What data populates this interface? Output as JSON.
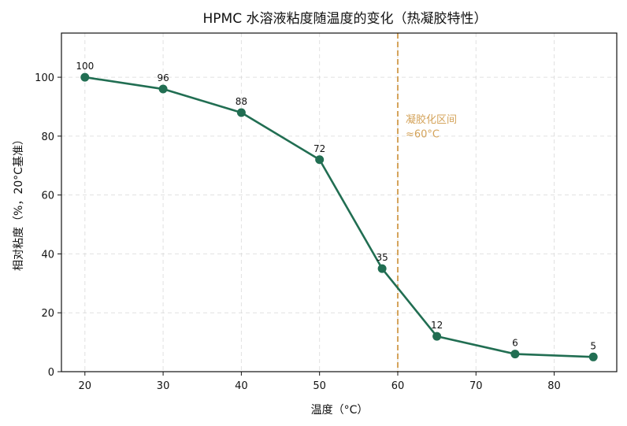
{
  "chart_data": {
    "type": "line",
    "title": "HPMC 水溶液粘度随温度的变化（热凝胶特性）",
    "xlabel": "温度（°C）",
    "ylabel": "相对粘度（%，20°C基准）",
    "xlim": [
      17,
      88
    ],
    "ylim": [
      0,
      115
    ],
    "xticks": [
      20,
      30,
      40,
      50,
      60,
      70,
      80
    ],
    "yticks": [
      0,
      20,
      40,
      60,
      80,
      100
    ],
    "grid": true,
    "series": [
      {
        "x": [
          20,
          30,
          40,
          50,
          58,
          65,
          75,
          85
        ],
        "values": [
          100,
          96,
          88,
          72,
          35,
          12,
          6,
          5
        ],
        "data_labels": [
          "100",
          "96",
          "88",
          "72",
          "35",
          "12",
          "6",
          "5"
        ],
        "color": "#216e52"
      }
    ],
    "reference_line": {
      "x": 60,
      "color": "#d4a35a",
      "label_line1": "凝胶化区间",
      "label_line2": "≈60°C"
    }
  }
}
